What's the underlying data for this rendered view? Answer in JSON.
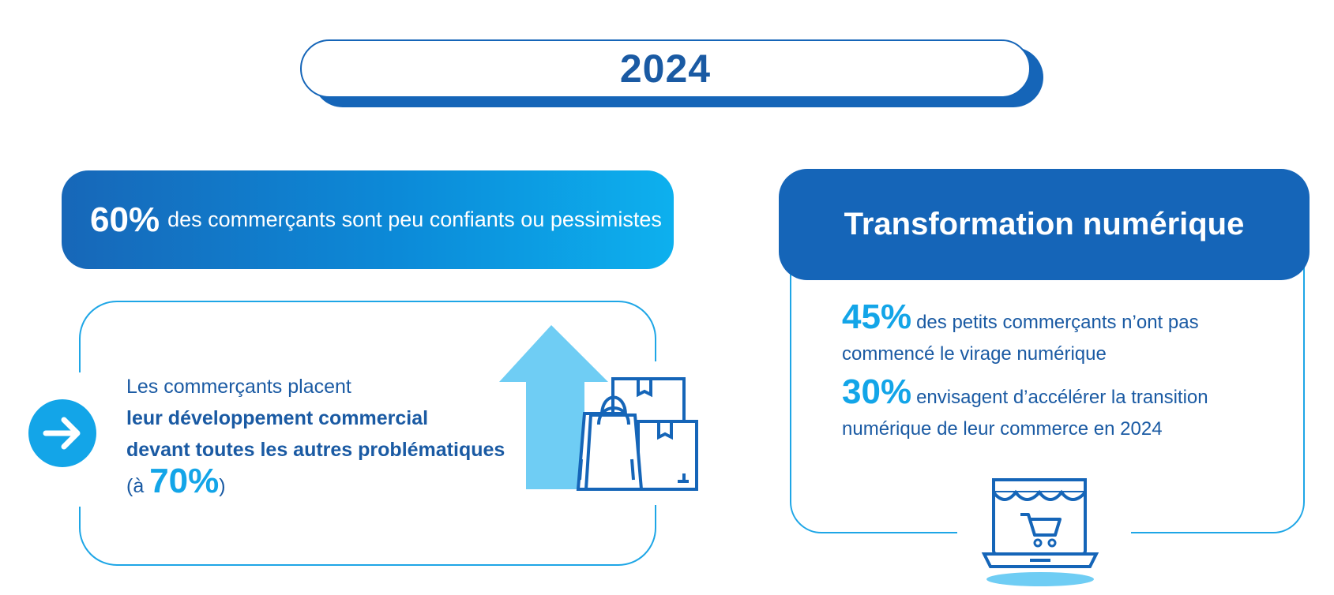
{
  "year": "2024",
  "left": {
    "banner": {
      "percent": "60%",
      "text": "des commerçants sont peu confiants ou pessimistes"
    },
    "card": {
      "line1": "Les commerçants placent",
      "bold1": "leur développement commercial",
      "bold2": "devant toutes les autres problématiques",
      "paren_open": "(à ",
      "percent": "70%",
      "paren_close": ")"
    }
  },
  "right": {
    "banner_title": "Transformation numérique",
    "stats": [
      {
        "percent": "45%",
        "text": "des petits commerçants n’ont pas commencé le virage numérique"
      },
      {
        "percent": "30%",
        "text": "envisagent d’accélérer la transition numérique de leur commerce en 2024"
      }
    ]
  },
  "icons": {
    "arrow": "arrow-right-icon",
    "shopping": "shopping-bags-boxes-icon",
    "store": "online-store-laptop-icon"
  },
  "colors": {
    "primary": "#1565b8",
    "accent": "#13a5e8",
    "light": "#6fcdf4"
  }
}
